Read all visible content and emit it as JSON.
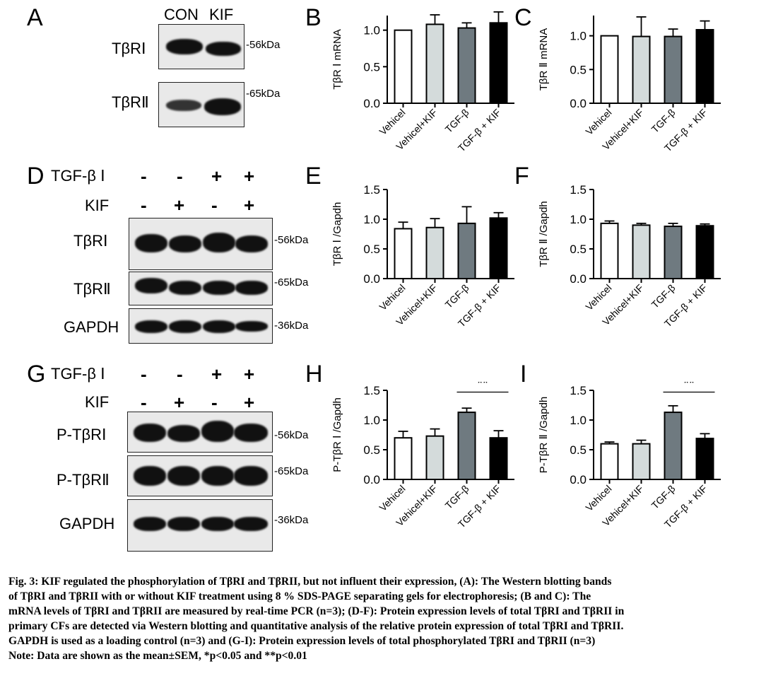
{
  "panelA": {
    "letter": "A",
    "lanes": [
      "CON",
      "KIF"
    ],
    "rows": [
      {
        "label": "TβRⅠ",
        "kda": "-56kDa"
      },
      {
        "label": "TβRⅡ",
        "kda": "-65kDa"
      }
    ]
  },
  "panelD": {
    "letter": "D",
    "tgf_label": "TGF-β Ⅰ",
    "kif_label": "KIF",
    "tgf_signs": [
      "-",
      "-",
      "+",
      "+"
    ],
    "kif_signs": [
      "-",
      "+",
      "-",
      "+"
    ],
    "rows": [
      {
        "label": "TβRⅠ",
        "kda": "-56kDa"
      },
      {
        "label": "TβRⅡ",
        "kda": "-65kDa"
      },
      {
        "label": "GAPDH",
        "kda": "-36kDa"
      }
    ]
  },
  "panelG": {
    "letter": "G",
    "tgf_label": "TGF-β Ⅰ",
    "kif_label": "KIF",
    "tgf_signs": [
      "-",
      "-",
      "+",
      "+"
    ],
    "kif_signs": [
      "-",
      "+",
      "-",
      "+"
    ],
    "rows": [
      {
        "label": "P-TβRⅠ",
        "kda": "-56kDa"
      },
      {
        "label": "P-TβRⅡ",
        "kda": "-65kDa"
      },
      {
        "label": "GAPDH",
        "kda": "-36kDa"
      }
    ]
  },
  "chart_data": [
    {
      "panel": "B",
      "type": "bar",
      "categories": [
        "Vehicel",
        "Vehicel+KIF",
        "TGF-β",
        "TGF-β + KIF"
      ],
      "values": [
        1.0,
        1.08,
        1.03,
        1.1
      ],
      "errors": [
        0.0,
        0.13,
        0.07,
        0.15
      ],
      "colors": [
        "#ffffff",
        "#d4dbdb",
        "#6f7a80",
        "#000000"
      ],
      "ylabel": "TβR Ⅰ mRNA",
      "ylim": [
        0,
        1.2
      ],
      "yticks": [
        "0.0",
        "0.5",
        "1.0"
      ],
      "sig": ""
    },
    {
      "panel": "C",
      "type": "bar",
      "categories": [
        "Vehicel",
        "Vehicel+KIF",
        "TGF-β",
        "TGF-β + KIF"
      ],
      "values": [
        1.0,
        0.99,
        0.99,
        1.09
      ],
      "errors": [
        0.0,
        0.29,
        0.11,
        0.13
      ],
      "colors": [
        "#ffffff",
        "#d4dbdb",
        "#6f7a80",
        "#000000"
      ],
      "ylabel": "TβR Ⅱ mRNA",
      "ylim": [
        0,
        1.3
      ],
      "yticks": [
        "0.0",
        "0.5",
        "1.0"
      ],
      "sig": ""
    },
    {
      "panel": "E",
      "type": "bar",
      "categories": [
        "Vehicel",
        "Vehicel+KIF",
        "TGF-β",
        "TGF-β + KIF"
      ],
      "values": [
        0.84,
        0.86,
        0.93,
        1.02
      ],
      "errors": [
        0.11,
        0.15,
        0.28,
        0.09
      ],
      "colors": [
        "#ffffff",
        "#d4dbdb",
        "#6f7a80",
        "#000000"
      ],
      "ylabel": "TβR Ⅰ /Gapdh",
      "ylim": [
        0,
        1.5
      ],
      "yticks": [
        "0.0",
        "0.5",
        "1.0",
        "1.5"
      ],
      "sig": ""
    },
    {
      "panel": "F",
      "type": "bar",
      "categories": [
        "Vehicel",
        "Vehicel+KIF",
        "TGF-β",
        "TGF-β + KIF"
      ],
      "values": [
        0.93,
        0.9,
        0.88,
        0.89
      ],
      "errors": [
        0.04,
        0.03,
        0.05,
        0.03
      ],
      "colors": [
        "#ffffff",
        "#d4dbdb",
        "#6f7a80",
        "#000000"
      ],
      "ylabel": "TβR Ⅱ /Gapdh",
      "ylim": [
        0,
        1.5
      ],
      "yticks": [
        "0.0",
        "0.5",
        "1.0",
        "1.5"
      ],
      "sig": ""
    },
    {
      "panel": "H",
      "type": "bar",
      "categories": [
        "Vehicel",
        "Vehicel+KIF",
        "TGF-β",
        "TGF-β + KIF"
      ],
      "values": [
        0.7,
        0.73,
        1.13,
        0.7
      ],
      "errors": [
        0.11,
        0.12,
        0.07,
        0.12
      ],
      "colors": [
        "#ffffff",
        "#d4dbdb",
        "#6f7a80",
        "#000000"
      ],
      "ylabel": "P-TβR Ⅰ /Gapdh",
      "ylim": [
        0,
        1.5
      ],
      "yticks": [
        "0.0",
        "0.5",
        "1.0",
        "1.5"
      ],
      "sig": "**"
    },
    {
      "panel": "I",
      "type": "bar",
      "categories": [
        "Vehicel",
        "Vehicel+KIF",
        "TGF-β",
        "TGF-β + KIF"
      ],
      "values": [
        0.6,
        0.6,
        1.13,
        0.69
      ],
      "errors": [
        0.03,
        0.06,
        0.11,
        0.08
      ],
      "colors": [
        "#ffffff",
        "#d4dbdb",
        "#6f7a80",
        "#000000"
      ],
      "ylabel": "P-TβR Ⅱ /Gapdh",
      "ylim": [
        0,
        1.5
      ],
      "yticks": [
        "0.0",
        "0.5",
        "1.0",
        "1.5"
      ],
      "sig": "**"
    }
  ],
  "caption": {
    "lines": [
      "Fig. 3: KIF regulated the phosphorylation of TβRI and TβRII, but not influent their expression, (A): The Western blotting bands",
      "of TβRI and TβRII with or without KIF treatment using 8 % SDS-PAGE separating gels for electrophoresis; (B and C): The",
      "mRNA levels of TβRI and TβRII are measured by real-time PCR (n=3); (D-F): Protein expression levels of total TβRI and TβRII in",
      "primary CFs are detected via Western blotting and quantitative analysis of the relative protein expression of total TβRI and TβRII.",
      "GAPDH is used as a loading control (n=3) and (G-I): Protein expression levels of total phosphorylated TβRI and TβRII (n=3)",
      "Note: Data are shown as the mean±SEM, *p<0.05 and **p<0.01"
    ]
  }
}
